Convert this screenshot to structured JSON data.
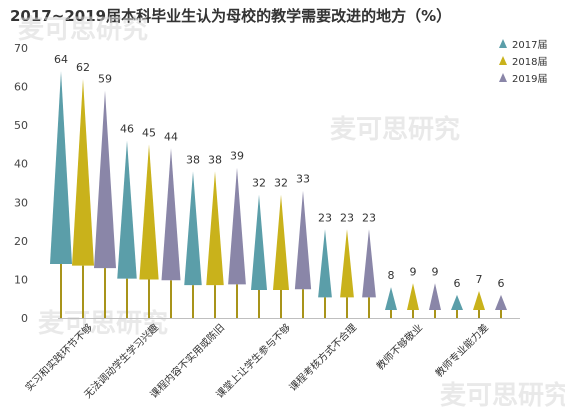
{
  "chart_data": {
    "type": "bar",
    "title": "2017~2019届本科毕业生认为母校的教学需要改进的地方（%）",
    "categories": [
      "实习和实践环节不够",
      "无法调动学生学习兴趣",
      "课程内容不实用或陈旧",
      "课堂上让学生参与不够",
      "课程考核方式不合理",
      "教师不够敬业",
      "教师专业能力差"
    ],
    "series": [
      {
        "name": "2017届",
        "values": [
          64,
          46,
          38,
          32,
          23,
          8,
          6
        ],
        "color": "#5b9ea9"
      },
      {
        "name": "2018届",
        "values": [
          62,
          45,
          38,
          32,
          23,
          9,
          7
        ],
        "color": "#c9b21b"
      },
      {
        "name": "2019届",
        "values": [
          59,
          44,
          39,
          33,
          23,
          9,
          6
        ],
        "color": "#8a86a8"
      }
    ],
    "yticks": [
      "0",
      "10",
      "20",
      "30",
      "40",
      "50",
      "60",
      "70"
    ],
    "ylim": [
      0,
      70
    ],
    "xlabel": "",
    "ylabel": "",
    "legend_position": "top-right",
    "watermark": "麦可思研究"
  }
}
